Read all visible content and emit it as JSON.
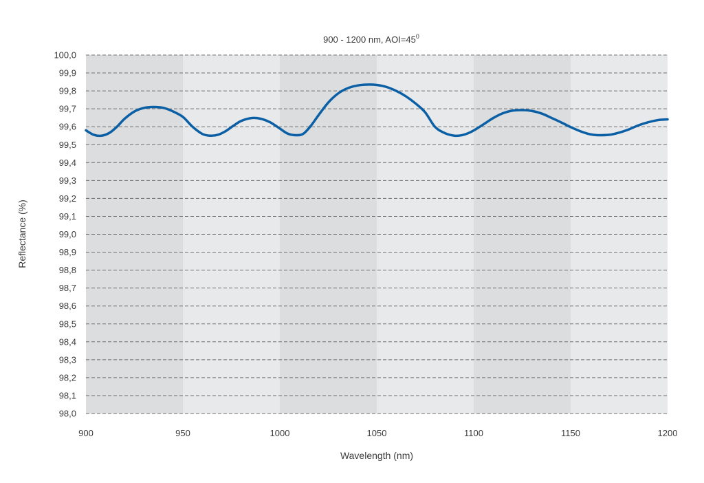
{
  "chart_data": {
    "type": "line",
    "title": "900 - 1200 nm, AOI=45",
    "title_superscript": "0",
    "xlabel": "Wavelength (nm)",
    "ylabel": "Reflectance (%)",
    "xlim": [
      900,
      1200
    ],
    "ylim": [
      98.0,
      100.0
    ],
    "x_ticks": [
      900,
      950,
      1000,
      1050,
      1100,
      1150,
      1200
    ],
    "x_tick_labels": [
      "900",
      "950",
      "1000",
      "1050",
      "1100",
      "1150",
      "1200"
    ],
    "y_ticks": [
      98.0,
      98.1,
      98.2,
      98.3,
      98.4,
      98.5,
      98.6,
      98.7,
      98.8,
      98.9,
      99.0,
      99.1,
      99.2,
      99.3,
      99.4,
      99.5,
      99.6,
      99.7,
      99.8,
      99.9,
      100.0
    ],
    "y_tick_labels": [
      "98,0",
      "98,1",
      "98,2",
      "98,3",
      "98,4",
      "98,5",
      "98,6",
      "98,7",
      "98,8",
      "98,9",
      "99,0",
      "99,1",
      "99,2",
      "99,3",
      "99,4",
      "99,5",
      "99,6",
      "99,7",
      "99,8",
      "99,9",
      "100,0"
    ],
    "grid": true,
    "band_colors": [
      "#dcdddf",
      "#e8e9eb"
    ],
    "series": [
      {
        "color": "#0b5fa5",
        "x": [
          900,
          904,
          908,
          912,
          916,
          920,
          925,
          930,
          935,
          940,
          945,
          950,
          955,
          960,
          964,
          968,
          972,
          976,
          980,
          985,
          990,
          995,
          1000,
          1004,
          1008,
          1012,
          1016,
          1020,
          1025,
          1030,
          1035,
          1040,
          1045,
          1050,
          1055,
          1060,
          1065,
          1070,
          1075,
          1080,
          1085,
          1090,
          1094,
          1098,
          1102,
          1106,
          1110,
          1115,
          1120,
          1125,
          1130,
          1135,
          1140,
          1145,
          1150,
          1155,
          1160,
          1164,
          1170,
          1175,
          1180,
          1185,
          1190,
          1195,
          1200
        ],
        "y": [
          99.58,
          99.555,
          99.55,
          99.565,
          99.6,
          99.645,
          99.685,
          99.705,
          99.71,
          99.705,
          99.685,
          99.655,
          99.6,
          99.56,
          99.55,
          99.555,
          99.575,
          99.605,
          99.632,
          99.648,
          99.645,
          99.625,
          99.59,
          99.562,
          99.553,
          99.56,
          99.605,
          99.665,
          99.735,
          99.785,
          99.815,
          99.83,
          99.835,
          99.833,
          99.822,
          99.8,
          99.77,
          99.73,
          99.68,
          99.6,
          99.565,
          99.55,
          99.553,
          99.568,
          99.592,
          99.62,
          99.648,
          99.675,
          99.69,
          99.693,
          99.688,
          99.674,
          99.65,
          99.625,
          99.598,
          99.575,
          99.558,
          99.553,
          99.555,
          99.567,
          99.585,
          99.608,
          99.625,
          99.637,
          99.641
        ]
      }
    ]
  }
}
